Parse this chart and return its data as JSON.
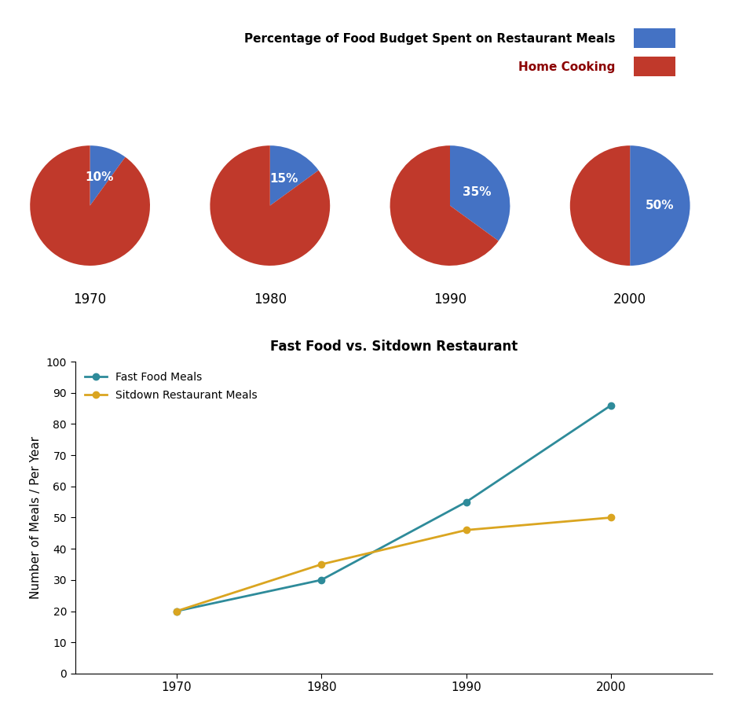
{
  "pie_years": [
    "1970",
    "1980",
    "1990",
    "2000"
  ],
  "pie_restaurant_pct": [
    10,
    15,
    35,
    50
  ],
  "pie_home_pct": [
    90,
    85,
    65,
    50
  ],
  "pie_color_restaurant": "#4472C4",
  "pie_color_home": "#C0392B",
  "pie_label_color": "white",
  "legend_title1": "Percentage of Food Budget Spent on Restaurant Meals",
  "legend_title2": "Home Cooking",
  "line_years": [
    1970,
    1980,
    1990,
    2000
  ],
  "fastfood_values": [
    20,
    30,
    55,
    86
  ],
  "sitdown_values": [
    20,
    35,
    46,
    50
  ],
  "line_title": "Fast Food vs. Sitdown Restaurant",
  "line_ylabel": "Number of Meals / Per Year",
  "fastfood_label": "Fast Food Meals",
  "sitdown_label": "Sitdown Restaurant Meals",
  "fastfood_color": "#2E8B9A",
  "sitdown_color": "#DAA520",
  "ylim": [
    0,
    100
  ],
  "yticks": [
    0,
    10,
    20,
    30,
    40,
    50,
    60,
    70,
    80,
    90,
    100
  ],
  "xticks": [
    1970,
    1980,
    1990,
    2000
  ],
  "background_color": "#FFFFFF"
}
